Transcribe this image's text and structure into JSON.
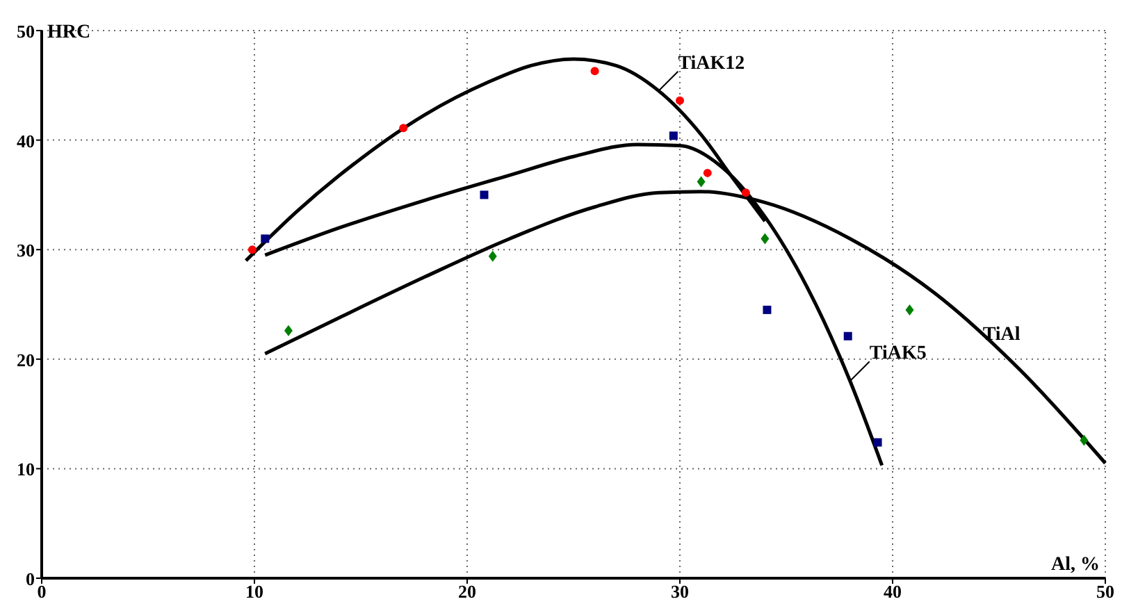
{
  "chart_data": {
    "type": "scatter",
    "xlabel": "Al, %",
    "ylabel": "HRC",
    "xlim": [
      0,
      50
    ],
    "ylim": [
      0,
      50
    ],
    "xticks": [
      0,
      10,
      20,
      30,
      40,
      50
    ],
    "yticks": [
      0,
      10,
      20,
      30,
      40,
      50
    ],
    "grid": true,
    "series": [
      {
        "color": "#ff0000",
        "marker": "circle",
        "x": [
          9.9,
          17.0,
          26.0,
          30.0,
          31.3,
          33.1
        ],
        "values": [
          30.0,
          41.1,
          46.3,
          43.6,
          37.0,
          35.2
        ]
      },
      {
        "color": "#000080",
        "marker": "square",
        "x": [
          10.5,
          20.8,
          29.7,
          34.1,
          37.9,
          39.3
        ],
        "values": [
          31.0,
          35.0,
          40.4,
          24.5,
          22.1,
          12.4
        ]
      },
      {
        "color": "#008000",
        "marker": "diamond",
        "x": [
          11.6,
          21.2,
          31.0,
          34.0,
          40.8,
          49.0
        ],
        "values": [
          22.6,
          29.4,
          36.2,
          31.0,
          24.5,
          12.6
        ]
      },
      {
        "type": "line",
        "name": "TiAK12",
        "color": "#000000",
        "line_style": "solid",
        "x": [
          9.6,
          12,
          15,
          18,
          21,
          23,
          25,
          27,
          29,
          31,
          32.5,
          34
        ],
        "values": [
          29,
          33.5,
          38.3,
          42.3,
          45.3,
          46.8,
          47.4,
          46.8,
          44.5,
          40.5,
          36.5,
          32.6
        ]
      },
      {
        "type": "line",
        "name": "TiAK5",
        "color": "#000000",
        "line_style": "solid",
        "x": [
          10.5,
          14,
          18,
          22,
          25,
          28,
          30,
          32,
          34,
          36,
          38,
          39.5
        ],
        "values": [
          29.5,
          32,
          34.5,
          36.8,
          38.5,
          39.6,
          39.5,
          37.5,
          33,
          26.5,
          18,
          10.3
        ]
      },
      {
        "type": "line",
        "name": "TiAl",
        "color": "#000000",
        "line_style": "solid",
        "x": [
          10.5,
          14,
          18,
          22,
          26,
          29,
          31,
          34,
          38,
          42,
          46,
          50
        ],
        "values": [
          20.5,
          23.8,
          27.5,
          31,
          33.9,
          35.2,
          35.3,
          34.3,
          31,
          26,
          19,
          10.5
        ]
      }
    ]
  }
}
